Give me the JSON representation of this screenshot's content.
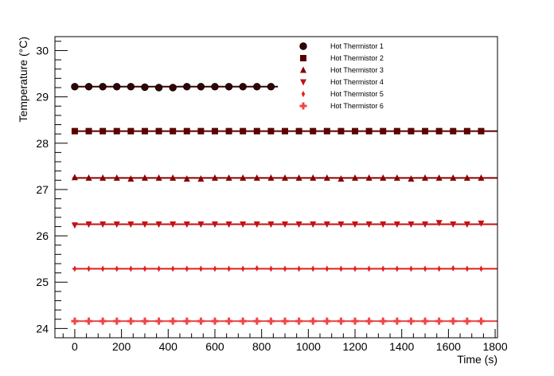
{
  "chart_data": {
    "type": "scatter",
    "xlabel": "Time (s)",
    "ylabel": "Temperature (°C)",
    "xlim": [
      -85,
      1810
    ],
    "ylim": [
      23.8,
      30.3
    ],
    "x_ticks": [
      0,
      200,
      400,
      600,
      800,
      1000,
      1200,
      1400,
      1600,
      1800
    ],
    "y_ticks": [
      24,
      25,
      26,
      27,
      28,
      29,
      30
    ],
    "legend_position": "top-right",
    "grid": false,
    "series": [
      {
        "name": "Hot Thermistor 1",
        "marker": "circle",
        "color": "#3a0000",
        "fit_value": 29.22,
        "fit_x": [
          -10,
          870
        ],
        "x": [
          0,
          60,
          120,
          180,
          240,
          300,
          360,
          420,
          480,
          540,
          600,
          660,
          720,
          780,
          840
        ],
        "y": [
          29.22,
          29.22,
          29.22,
          29.22,
          29.22,
          29.21,
          29.2,
          29.2,
          29.22,
          29.22,
          29.22,
          29.22,
          29.22,
          29.22,
          29.22
        ]
      },
      {
        "name": "Hot Thermistor 2",
        "marker": "square",
        "color": "#5a0000",
        "fit_value": 28.26,
        "fit_x": [
          -10,
          1810
        ],
        "x": [
          0,
          60,
          120,
          180,
          240,
          300,
          360,
          420,
          480,
          540,
          600,
          660,
          720,
          780,
          840,
          900,
          960,
          1020,
          1080,
          1140,
          1200,
          1260,
          1320,
          1380,
          1440,
          1500,
          1560,
          1620,
          1680,
          1740
        ],
        "y": [
          28.26,
          28.26,
          28.26,
          28.26,
          28.26,
          28.26,
          28.26,
          28.26,
          28.26,
          28.26,
          28.26,
          28.26,
          28.26,
          28.26,
          28.26,
          28.26,
          28.26,
          28.26,
          28.26,
          28.26,
          28.26,
          28.26,
          28.26,
          28.26,
          28.26,
          28.26,
          28.26,
          28.26,
          28.26,
          28.26
        ]
      },
      {
        "name": "Hot Thermistor 3",
        "marker": "triangle-up",
        "color": "#8b0000",
        "fit_value": 27.25,
        "fit_x": [
          -10,
          1810
        ],
        "x": [
          0,
          60,
          120,
          180,
          240,
          300,
          360,
          420,
          480,
          540,
          600,
          660,
          720,
          780,
          840,
          900,
          960,
          1020,
          1080,
          1140,
          1200,
          1260,
          1320,
          1380,
          1440,
          1500,
          1560,
          1620,
          1680,
          1740
        ],
        "y": [
          27.26,
          27.25,
          27.25,
          27.25,
          27.23,
          27.25,
          27.25,
          27.25,
          27.23,
          27.23,
          27.25,
          27.25,
          27.25,
          27.25,
          27.25,
          27.25,
          27.25,
          27.25,
          27.25,
          27.23,
          27.25,
          27.25,
          27.25,
          27.25,
          27.23,
          27.25,
          27.25,
          27.25,
          27.25,
          27.25
        ]
      },
      {
        "name": "Hot Thermistor 4",
        "marker": "triangle-down",
        "color": "#c41212",
        "fit_value": 26.25,
        "fit_x": [
          -10,
          1810
        ],
        "x": [
          0,
          60,
          120,
          180,
          240,
          300,
          360,
          420,
          480,
          540,
          600,
          660,
          720,
          780,
          840,
          900,
          960,
          1020,
          1080,
          1140,
          1200,
          1260,
          1320,
          1380,
          1440,
          1500,
          1560,
          1620,
          1680,
          1740
        ],
        "y": [
          26.23,
          26.25,
          26.25,
          26.25,
          26.25,
          26.25,
          26.25,
          26.25,
          26.25,
          26.25,
          26.25,
          26.25,
          26.25,
          26.25,
          26.25,
          26.25,
          26.25,
          26.25,
          26.25,
          26.25,
          26.25,
          26.25,
          26.25,
          26.25,
          26.25,
          26.25,
          26.28,
          26.25,
          26.25,
          26.27
        ]
      },
      {
        "name": "Hot Thermistor 5",
        "marker": "diamond-thin",
        "color": "#e02020",
        "fit_value": 25.29,
        "fit_x": [
          -10,
          1810
        ],
        "x": [
          0,
          60,
          120,
          180,
          240,
          300,
          360,
          420,
          480,
          540,
          600,
          660,
          720,
          780,
          840,
          900,
          960,
          1020,
          1080,
          1140,
          1200,
          1260,
          1320,
          1380,
          1440,
          1500,
          1560,
          1620,
          1680,
          1740
        ],
        "y": [
          25.29,
          25.29,
          25.29,
          25.29,
          25.29,
          25.29,
          25.29,
          25.29,
          25.29,
          25.29,
          25.29,
          25.29,
          25.29,
          25.3,
          25.29,
          25.29,
          25.29,
          25.29,
          25.29,
          25.29,
          25.29,
          25.29,
          25.29,
          25.29,
          25.29,
          25.29,
          25.29,
          25.3,
          25.29,
          25.29
        ]
      },
      {
        "name": "Hot Thermistor 6",
        "marker": "cross",
        "color": "#ee4444",
        "fit_value": 24.16,
        "fit_x": [
          -10,
          1810
        ],
        "x": [
          0,
          60,
          120,
          180,
          240,
          300,
          360,
          420,
          480,
          540,
          600,
          660,
          720,
          780,
          840,
          900,
          960,
          1020,
          1080,
          1140,
          1200,
          1260,
          1320,
          1380,
          1440,
          1500,
          1560,
          1620,
          1680,
          1740
        ],
        "y": [
          24.16,
          24.16,
          24.16,
          24.16,
          24.16,
          24.16,
          24.16,
          24.16,
          24.16,
          24.16,
          24.16,
          24.16,
          24.16,
          24.16,
          24.16,
          24.16,
          24.16,
          24.16,
          24.16,
          24.16,
          24.16,
          24.16,
          24.16,
          24.16,
          24.16,
          24.16,
          24.16,
          24.16,
          24.16,
          24.16
        ]
      }
    ]
  }
}
